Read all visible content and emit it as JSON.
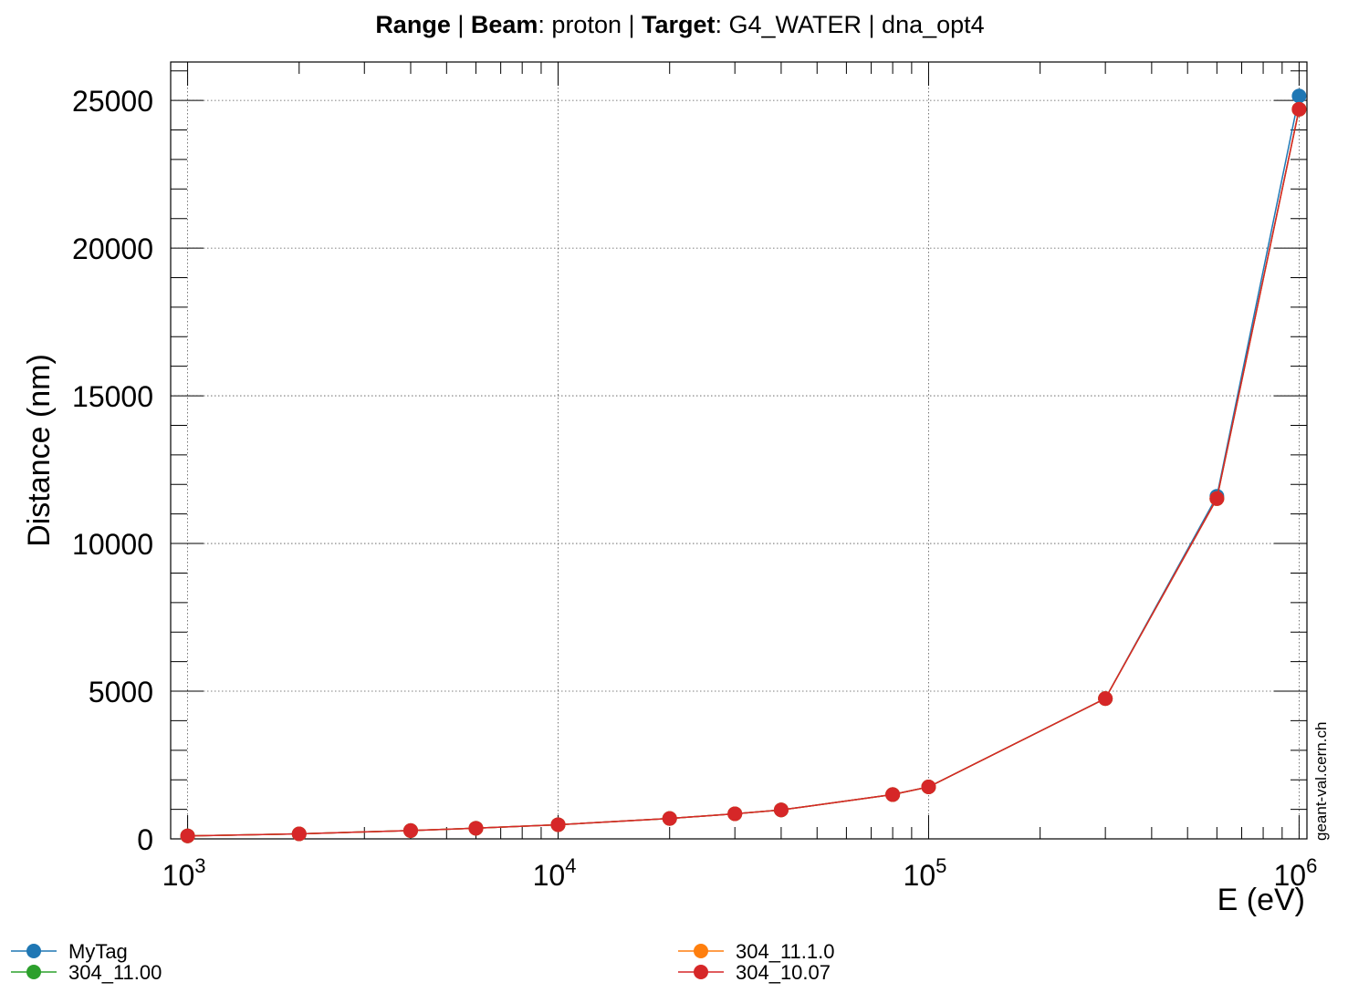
{
  "title": {
    "parts": [
      {
        "text": "Range",
        "bold": true
      },
      {
        "text": " | ",
        "bold": false
      },
      {
        "text": "Beam",
        "bold": true
      },
      {
        "text": ": proton | ",
        "bold": false
      },
      {
        "text": "Target",
        "bold": true
      },
      {
        "text": ": G4_WATER | dna_opt4",
        "bold": false
      }
    ]
  },
  "watermark": "geant-val.cern.ch",
  "chart_data": {
    "type": "line",
    "title": "Range | Beam: proton | Target: G4_WATER | dna_opt4",
    "xlabel": "E (eV)",
    "ylabel": "Distance (nm)",
    "x_scale": "log",
    "xlim": [
      900,
      1050000
    ],
    "ylim": [
      0,
      26300
    ],
    "grid": true,
    "legend_position": "bottom",
    "x_tick_labels": [
      {
        "value": 1000,
        "base": "10",
        "exp": "3"
      },
      {
        "value": 10000,
        "base": "10",
        "exp": "4"
      },
      {
        "value": 100000,
        "base": "10",
        "exp": "5"
      },
      {
        "value": 1000000,
        "base": "10",
        "exp": "6"
      }
    ],
    "y_ticks": [
      0,
      5000,
      10000,
      15000,
      20000,
      25000
    ],
    "y_tick_labels": [
      "0",
      "5000",
      "10000",
      "15000",
      "20000",
      "25000"
    ],
    "x": [
      1000,
      2000,
      4000,
      6000,
      10000,
      20000,
      30000,
      40000,
      80000,
      100000,
      300000,
      600000,
      1000000
    ],
    "series": [
      {
        "name": "MyTag",
        "color": "#1f77b4",
        "values": [
          100,
          170,
          280,
          360,
          480,
          690,
          850,
          980,
          1500,
          1760,
          4750,
          11600,
          25150
        ]
      },
      {
        "name": "304_11.00",
        "color": "#2ca02c",
        "values": [
          100,
          170,
          280,
          360,
          480,
          690,
          850,
          980,
          1500,
          1760,
          4750,
          11520,
          24700
        ]
      },
      {
        "name": "304_11.1.0",
        "color": "#ff7f0e",
        "values": [
          100,
          170,
          280,
          360,
          480,
          690,
          850,
          980,
          1500,
          1760,
          4750,
          11520,
          24700
        ]
      },
      {
        "name": "304_10.07",
        "color": "#d62728",
        "values": [
          100,
          170,
          280,
          360,
          480,
          690,
          850,
          980,
          1500,
          1760,
          4750,
          11520,
          24700
        ]
      }
    ]
  }
}
